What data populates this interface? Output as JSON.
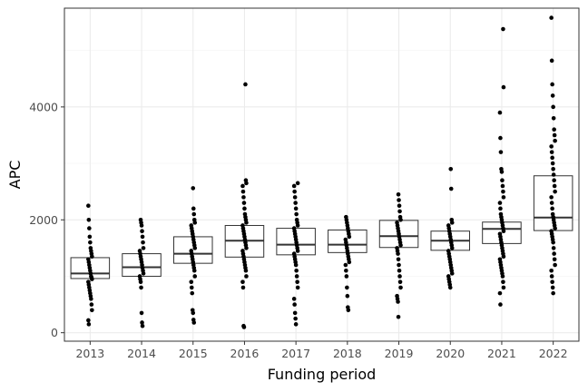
{
  "chart_data": {
    "type": "box+jitter",
    "title": "",
    "xlabel": "Funding period",
    "ylabel": "APC",
    "categories": [
      "2013",
      "2014",
      "2015",
      "2016",
      "2017",
      "2018",
      "2019",
      "2020",
      "2021",
      "2022"
    ],
    "ylim": [
      -150,
      5750
    ],
    "yticks": [
      0,
      2000,
      4000
    ],
    "grid": true,
    "legend": "none",
    "boxes": [
      {
        "q1": 960,
        "median": 1050,
        "q3": 1330
      },
      {
        "q1": 1000,
        "median": 1160,
        "q3": 1400
      },
      {
        "q1": 1230,
        "median": 1400,
        "q3": 1700
      },
      {
        "q1": 1340,
        "median": 1630,
        "q3": 1900
      },
      {
        "q1": 1380,
        "median": 1560,
        "q3": 1850
      },
      {
        "q1": 1420,
        "median": 1560,
        "q3": 1820
      },
      {
        "q1": 1510,
        "median": 1710,
        "q3": 1990
      },
      {
        "q1": 1460,
        "median": 1630,
        "q3": 1800
      },
      {
        "q1": 1580,
        "median": 1840,
        "q3": 1960
      },
      {
        "q1": 1810,
        "median": 2040,
        "q3": 2780
      }
    ],
    "points": [
      [
        2250,
        2000,
        1850,
        1700,
        1600,
        1500,
        1450,
        1400,
        1350,
        1300,
        1250,
        1200,
        1150,
        1100,
        1050,
        1000,
        980,
        950,
        900,
        850,
        800,
        750,
        700,
        650,
        600,
        500,
        400,
        220,
        150
      ],
      [
        2000,
        1950,
        1900,
        1800,
        1700,
        1600,
        1500,
        1450,
        1400,
        1350,
        1300,
        1250,
        1200,
        1150,
        1100,
        1050,
        1000,
        950,
        900,
        800,
        350,
        180,
        120
      ],
      [
        2560,
        2200,
        2100,
        2000,
        1950,
        1900,
        1850,
        1800,
        1750,
        1700,
        1650,
        1600,
        1550,
        1500,
        1450,
        1400,
        1350,
        1300,
        1250,
        1200,
        1150,
        1100,
        1000,
        900,
        800,
        700,
        400,
        350,
        230,
        180
      ],
      [
        4400,
        2700,
        2650,
        2600,
        2500,
        2400,
        2300,
        2200,
        2100,
        2050,
        2000,
        1950,
        1900,
        1850,
        1800,
        1750,
        1700,
        1650,
        1600,
        1550,
        1500,
        1450,
        1400,
        1350,
        1300,
        1250,
        1200,
        1150,
        1100,
        1000,
        900,
        800,
        120,
        100
      ],
      [
        2650,
        2600,
        2500,
        2400,
        2300,
        2200,
        2100,
        2000,
        1950,
        1900,
        1850,
        1800,
        1750,
        1700,
        1650,
        1600,
        1550,
        1500,
        1450,
        1400,
        1350,
        1300,
        1250,
        1200,
        1100,
        1000,
        900,
        800,
        600,
        500,
        350,
        250,
        150
      ],
      [
        2050,
        2000,
        1950,
        1900,
        1850,
        1800,
        1750,
        1700,
        1650,
        1600,
        1550,
        1500,
        1450,
        1400,
        1350,
        1300,
        1250,
        1200,
        1100,
        1000,
        800,
        650,
        450,
        400
      ],
      [
        2450,
        2350,
        2250,
        2150,
        2050,
        2000,
        1950,
        1900,
        1850,
        1800,
        1750,
        1700,
        1650,
        1600,
        1550,
        1500,
        1450,
        1400,
        1300,
        1200,
        1100,
        1000,
        900,
        800,
        650,
        600,
        550,
        280
      ],
      [
        2900,
        2550,
        2000,
        1950,
        1900,
        1850,
        1800,
        1750,
        1700,
        1650,
        1600,
        1550,
        1500,
        1450,
        1400,
        1350,
        1300,
        1250,
        1200,
        1150,
        1100,
        1050,
        1000,
        950,
        900,
        850,
        800
      ],
      [
        5380,
        4350,
        3900,
        3450,
        3200,
        2900,
        2850,
        2700,
        2600,
        2500,
        2400,
        2300,
        2200,
        2100,
        2050,
        2000,
        1950,
        1900,
        1850,
        1800,
        1750,
        1700,
        1650,
        1600,
        1550,
        1500,
        1450,
        1400,
        1350,
        1300,
        1250,
        1200,
        1150,
        1100,
        1050,
        1000,
        900,
        800,
        700,
        500
      ],
      [
        5580,
        4820,
        4400,
        4200,
        4000,
        3800,
        3600,
        3500,
        3400,
        3300,
        3200,
        3100,
        3000,
        2900,
        2800,
        2700,
        2600,
        2500,
        2400,
        2300,
        2200,
        2100,
        2050,
        2000,
        1950,
        1900,
        1850,
        1800,
        1750,
        1700,
        1650,
        1600,
        1500,
        1400,
        1300,
        1200,
        1100,
        1000,
        900,
        800,
        700
      ]
    ],
    "colors": {
      "panel_border": "#333333",
      "grid_major": "#ebebeb",
      "grid_minor": "#f4f4f4",
      "box_stroke": "#333333",
      "point": "#000000",
      "tick_text": "#4d4d4d",
      "title_text": "#000000"
    }
  }
}
